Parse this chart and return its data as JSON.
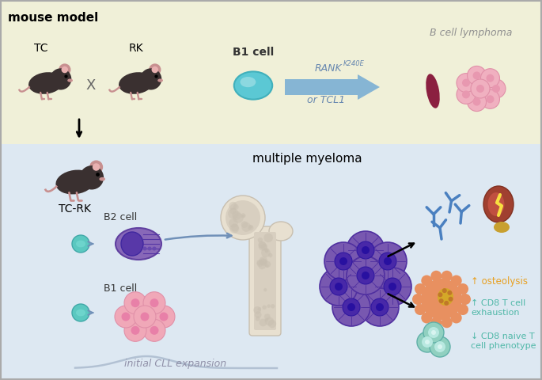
{
  "top_bg_color": "#f0f0d8",
  "bottom_bg_color": "#dde8f2",
  "title_text": "mouse model",
  "title_fontsize": 11,
  "tc_label": "TC",
  "rk_label": "RK",
  "tcrk_label": "TC-RK",
  "b1_cell_label_top": "B1 cell",
  "rank_text": "RANK",
  "rank_super": "K240E",
  "or_tcl1_text": "or TCL1",
  "arrow_color": "#7bafd4",
  "b_cell_lymphoma_label": "B cell lymphoma",
  "mm_label": "multiple myeloma",
  "b2_cell_label": "B2 cell",
  "b1_cell_label_bottom": "B1 cell",
  "cll_label": "initial CLL expansion",
  "osteolysis_label": "↑ osteolysis",
  "osteolysis_color": "#e8a020",
  "cd8_exhaust_label": "↑ CD8 T cell\nexhaustion",
  "cd8_exhaust_color": "#50b8a8",
  "cd8_naive_label": "↓ CD8 naive T\ncell phenotype",
  "cd8_naive_color": "#50b8a8",
  "mouse_body_color": "#3a3030",
  "mouse_ear_color": "#c89090",
  "lymphoma_spleen_color": "#8b2040",
  "plasma_cell_color": "#7050a0",
  "cll_cell_color": "#f0a0b0",
  "b_cell_teal": "#5bc8c8",
  "arrow_small_color": "#7090b8",
  "bone_color_light": "#e8e0d0",
  "bone_color_mid": "#d8cfc0",
  "bone_color_dark": "#c8bfb0",
  "antibody_color": "#4a80c0",
  "kidney_body_color": "#a04030",
  "kidney_gold_color": "#c8a030",
  "mm_cell_outer": "#7850a8",
  "mm_cell_inner": "#4830a0",
  "mm_cell_dark": "#2810a0",
  "osteoclast_color": "#e89060",
  "teal_immune_color": "#90d0c0"
}
